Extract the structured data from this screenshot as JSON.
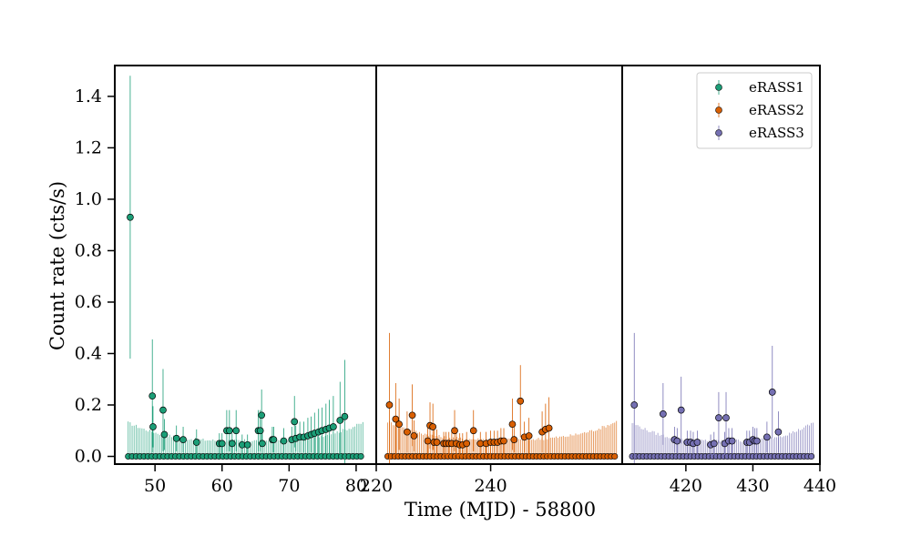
{
  "chart_data": {
    "type": "scatter",
    "xlabel": "Time (MJD) - 58800",
    "ylabel": "Count rate (cts/s)",
    "ylim": [
      -0.03,
      1.52
    ],
    "yticks": [
      0.0,
      0.2,
      0.4,
      0.6,
      0.8,
      1.0,
      1.2,
      1.4
    ],
    "ytick_labels": [
      "0.0",
      "0.2",
      "0.4",
      "0.6",
      "0.8",
      "1.0",
      "1.2",
      "1.4"
    ],
    "grid": false,
    "legend_position": "top-right",
    "panels": [
      {
        "xlim": [
          44,
          83
        ],
        "xticks": [
          50,
          60,
          70,
          80
        ],
        "xtick_labels": [
          "50",
          "60",
          "70",
          "80"
        ]
      },
      {
        "xlim": [
          220,
          263
        ],
        "xticks": [
          220,
          240
        ],
        "xtick_labels": [
          "220",
          "240"
        ]
      },
      {
        "xlim": [
          410.5,
          440
        ],
        "xticks": [
          420,
          430,
          440
        ],
        "xtick_labels": [
          "420",
          "430",
          "440"
        ]
      }
    ],
    "series": [
      {
        "name": "eRASS1",
        "color": "#1b9e77",
        "panel": 0,
        "x_range": [
          46.0,
          81.0
        ],
        "n_zero": 120,
        "upper_env_base": 0.055,
        "points": [
          {
            "x": 46.3,
            "y": 0.93,
            "err": 0.55
          },
          {
            "x": 49.6,
            "y": 0.235,
            "err": 0.22
          },
          {
            "x": 49.7,
            "y": 0.115,
            "err": 0.08
          },
          {
            "x": 51.2,
            "y": 0.18,
            "err": 0.16
          },
          {
            "x": 51.4,
            "y": 0.085,
            "err": 0.06
          },
          {
            "x": 53.2,
            "y": 0.07,
            "err": 0.05
          },
          {
            "x": 54.2,
            "y": 0.065,
            "err": 0.05
          },
          {
            "x": 56.2,
            "y": 0.055,
            "err": 0.05
          },
          {
            "x": 59.6,
            "y": 0.05,
            "err": 0.04
          },
          {
            "x": 60.0,
            "y": 0.05,
            "err": 0.04
          },
          {
            "x": 60.7,
            "y": 0.1,
            "err": 0.08
          },
          {
            "x": 61.1,
            "y": 0.1,
            "err": 0.08
          },
          {
            "x": 61.5,
            "y": 0.05,
            "err": 0.04
          },
          {
            "x": 62.1,
            "y": 0.1,
            "err": 0.08
          },
          {
            "x": 63.0,
            "y": 0.045,
            "err": 0.04
          },
          {
            "x": 63.8,
            "y": 0.045,
            "err": 0.04
          },
          {
            "x": 65.4,
            "y": 0.1,
            "err": 0.08
          },
          {
            "x": 65.7,
            "y": 0.1,
            "err": 0.08
          },
          {
            "x": 65.9,
            "y": 0.16,
            "err": 0.1
          },
          {
            "x": 66.0,
            "y": 0.05,
            "err": 0.04
          },
          {
            "x": 67.5,
            "y": 0.065,
            "err": 0.05
          },
          {
            "x": 67.7,
            "y": 0.065,
            "err": 0.05
          },
          {
            "x": 69.2,
            "y": 0.06,
            "err": 0.05
          },
          {
            "x": 70.4,
            "y": 0.065,
            "err": 0.05
          },
          {
            "x": 70.8,
            "y": 0.135,
            "err": 0.1
          },
          {
            "x": 71.0,
            "y": 0.07,
            "err": 0.05
          },
          {
            "x": 71.6,
            "y": 0.075,
            "err": 0.06
          },
          {
            "x": 72.2,
            "y": 0.075,
            "err": 0.06
          },
          {
            "x": 72.8,
            "y": 0.08,
            "err": 0.07
          },
          {
            "x": 73.3,
            "y": 0.085,
            "err": 0.07
          },
          {
            "x": 73.8,
            "y": 0.09,
            "err": 0.08
          },
          {
            "x": 74.4,
            "y": 0.095,
            "err": 0.09
          },
          {
            "x": 74.9,
            "y": 0.1,
            "err": 0.09
          },
          {
            "x": 75.5,
            "y": 0.105,
            "err": 0.1
          },
          {
            "x": 76.0,
            "y": 0.11,
            "err": 0.11
          },
          {
            "x": 76.6,
            "y": 0.115,
            "err": 0.12
          },
          {
            "x": 77.6,
            "y": 0.14,
            "err": 0.15
          },
          {
            "x": 78.3,
            "y": 0.155,
            "err": 0.22
          }
        ]
      },
      {
        "name": "eRASS2",
        "color": "#d95f02",
        "panel": 1,
        "x_range": [
          222.0,
          262.0
        ],
        "n_zero": 130,
        "upper_env_base": 0.06,
        "points": [
          {
            "x": 222.3,
            "y": 0.2,
            "err": 0.28
          },
          {
            "x": 223.4,
            "y": 0.145,
            "err": 0.14
          },
          {
            "x": 224.0,
            "y": 0.125,
            "err": 0.1
          },
          {
            "x": 225.4,
            "y": 0.095,
            "err": 0.08
          },
          {
            "x": 226.3,
            "y": 0.16,
            "err": 0.12
          },
          {
            "x": 226.6,
            "y": 0.08,
            "err": 0.06
          },
          {
            "x": 229.0,
            "y": 0.06,
            "err": 0.05
          },
          {
            "x": 229.4,
            "y": 0.12,
            "err": 0.09
          },
          {
            "x": 229.9,
            "y": 0.115,
            "err": 0.09
          },
          {
            "x": 230.1,
            "y": 0.055,
            "err": 0.05
          },
          {
            "x": 230.6,
            "y": 0.055,
            "err": 0.05
          },
          {
            "x": 231.8,
            "y": 0.05,
            "err": 0.045
          },
          {
            "x": 232.2,
            "y": 0.05,
            "err": 0.045
          },
          {
            "x": 232.7,
            "y": 0.05,
            "err": 0.045
          },
          {
            "x": 233.2,
            "y": 0.05,
            "err": 0.045
          },
          {
            "x": 233.7,
            "y": 0.1,
            "err": 0.08
          },
          {
            "x": 234.0,
            "y": 0.05,
            "err": 0.045
          },
          {
            "x": 234.6,
            "y": 0.045,
            "err": 0.045
          },
          {
            "x": 235.1,
            "y": 0.045,
            "err": 0.045
          },
          {
            "x": 235.8,
            "y": 0.05,
            "err": 0.045
          },
          {
            "x": 237.0,
            "y": 0.1,
            "err": 0.08
          },
          {
            "x": 238.2,
            "y": 0.05,
            "err": 0.045
          },
          {
            "x": 239.2,
            "y": 0.05,
            "err": 0.045
          },
          {
            "x": 240.0,
            "y": 0.055,
            "err": 0.045
          },
          {
            "x": 240.6,
            "y": 0.055,
            "err": 0.045
          },
          {
            "x": 241.2,
            "y": 0.055,
            "err": 0.045
          },
          {
            "x": 241.8,
            "y": 0.06,
            "err": 0.05
          },
          {
            "x": 242.3,
            "y": 0.06,
            "err": 0.05
          },
          {
            "x": 243.8,
            "y": 0.125,
            "err": 0.1
          },
          {
            "x": 244.1,
            "y": 0.065,
            "err": 0.05
          },
          {
            "x": 245.2,
            "y": 0.215,
            "err": 0.14
          },
          {
            "x": 245.9,
            "y": 0.075,
            "err": 0.06
          },
          {
            "x": 246.7,
            "y": 0.08,
            "err": 0.07
          },
          {
            "x": 249.0,
            "y": 0.095,
            "err": 0.08
          },
          {
            "x": 249.6,
            "y": 0.105,
            "err": 0.1
          },
          {
            "x": 250.2,
            "y": 0.11,
            "err": 0.12
          }
        ]
      },
      {
        "name": "eRASS3",
        "color": "#7570b3",
        "panel": 2,
        "x_range": [
          412.0,
          439.0
        ],
        "n_zero": 100,
        "upper_env_base": 0.055,
        "points": [
          {
            "x": 412.3,
            "y": 0.2,
            "err": 0.28
          },
          {
            "x": 416.6,
            "y": 0.165,
            "err": 0.12
          },
          {
            "x": 418.3,
            "y": 0.065,
            "err": 0.05
          },
          {
            "x": 418.7,
            "y": 0.06,
            "err": 0.05
          },
          {
            "x": 419.3,
            "y": 0.18,
            "err": 0.13
          },
          {
            "x": 420.2,
            "y": 0.055,
            "err": 0.045
          },
          {
            "x": 420.7,
            "y": 0.055,
            "err": 0.045
          },
          {
            "x": 421.1,
            "y": 0.05,
            "err": 0.045
          },
          {
            "x": 421.7,
            "y": 0.055,
            "err": 0.045
          },
          {
            "x": 423.7,
            "y": 0.045,
            "err": 0.04
          },
          {
            "x": 424.2,
            "y": 0.05,
            "err": 0.045
          },
          {
            "x": 424.9,
            "y": 0.15,
            "err": 0.1
          },
          {
            "x": 425.8,
            "y": 0.05,
            "err": 0.045
          },
          {
            "x": 426.0,
            "y": 0.15,
            "err": 0.1
          },
          {
            "x": 426.4,
            "y": 0.06,
            "err": 0.05
          },
          {
            "x": 426.9,
            "y": 0.06,
            "err": 0.05
          },
          {
            "x": 429.1,
            "y": 0.055,
            "err": 0.045
          },
          {
            "x": 429.5,
            "y": 0.055,
            "err": 0.045
          },
          {
            "x": 430.0,
            "y": 0.065,
            "err": 0.05
          },
          {
            "x": 430.3,
            "y": 0.06,
            "err": 0.05
          },
          {
            "x": 430.6,
            "y": 0.06,
            "err": 0.05
          },
          {
            "x": 432.1,
            "y": 0.075,
            "err": 0.06
          },
          {
            "x": 432.9,
            "y": 0.25,
            "err": 0.18
          },
          {
            "x": 433.8,
            "y": 0.095,
            "err": 0.08
          }
        ]
      }
    ]
  }
}
